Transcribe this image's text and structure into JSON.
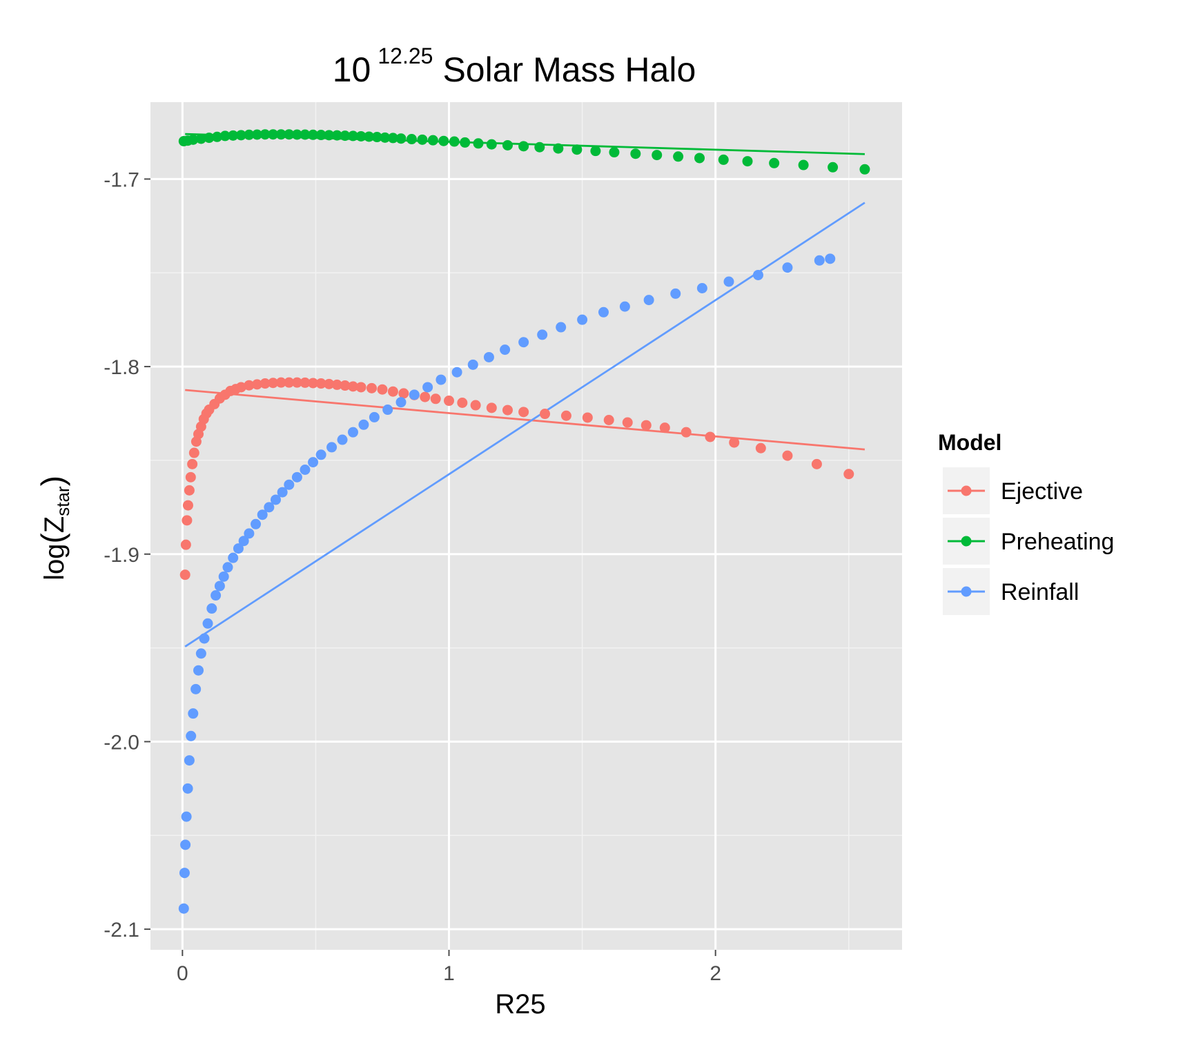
{
  "chart_data": {
    "type": "scatter",
    "title": {
      "base": "10",
      "exponent": "12.25",
      "rest": "Solar Mass Halo"
    },
    "xlabel": "R25",
    "ylabel": {
      "prefix": "log",
      "main": "Z",
      "subscript": "star"
    },
    "xlim": [
      -0.12,
      2.7
    ],
    "ylim": [
      -2.111,
      -1.659
    ],
    "x_ticks": [
      {
        "value": 0,
        "label": "0"
      },
      {
        "value": 1,
        "label": "1"
      },
      {
        "value": 2,
        "label": "2"
      }
    ],
    "y_ticks": [
      {
        "value": -2.1,
        "label": "-2.1"
      },
      {
        "value": -2.0,
        "label": "-2.0"
      },
      {
        "value": -1.9,
        "label": "-1.9"
      },
      {
        "value": -1.8,
        "label": "-1.8"
      },
      {
        "value": -1.7,
        "label": "-1.7"
      }
    ],
    "grid": true,
    "legend": {
      "title": "Model",
      "position": "right"
    },
    "series": [
      {
        "name": "Ejective",
        "color": "#F8766D",
        "points": [
          [
            0.01,
            -1.911
          ],
          [
            0.013,
            -1.895
          ],
          [
            0.017,
            -1.882
          ],
          [
            0.021,
            -1.874
          ],
          [
            0.026,
            -1.866
          ],
          [
            0.031,
            -1.859
          ],
          [
            0.037,
            -1.852
          ],
          [
            0.044,
            -1.846
          ],
          [
            0.052,
            -1.84
          ],
          [
            0.06,
            -1.836
          ],
          [
            0.07,
            -1.832
          ],
          [
            0.08,
            -1.828
          ],
          [
            0.09,
            -1.825
          ],
          [
            0.1,
            -1.823
          ],
          [
            0.12,
            -1.82
          ],
          [
            0.14,
            -1.817
          ],
          [
            0.16,
            -1.815
          ],
          [
            0.18,
            -1.813
          ],
          [
            0.2,
            -1.812
          ],
          [
            0.22,
            -1.811
          ],
          [
            0.25,
            -1.81
          ],
          [
            0.28,
            -1.8095
          ],
          [
            0.31,
            -1.809
          ],
          [
            0.34,
            -1.8087
          ],
          [
            0.37,
            -1.8085
          ],
          [
            0.4,
            -1.8085
          ],
          [
            0.43,
            -1.8085
          ],
          [
            0.46,
            -1.8086
          ],
          [
            0.49,
            -1.8088
          ],
          [
            0.52,
            -1.809
          ],
          [
            0.55,
            -1.8093
          ],
          [
            0.58,
            -1.8097
          ],
          [
            0.61,
            -1.8101
          ],
          [
            0.64,
            -1.8106
          ],
          [
            0.67,
            -1.811
          ],
          [
            0.71,
            -1.8115
          ],
          [
            0.75,
            -1.8122
          ],
          [
            0.79,
            -1.8133
          ],
          [
            0.83,
            -1.8143
          ],
          [
            0.87,
            -1.8152
          ],
          [
            0.91,
            -1.8162
          ],
          [
            0.95,
            -1.8172
          ],
          [
            1.0,
            -1.8182
          ],
          [
            1.05,
            -1.8193
          ],
          [
            1.1,
            -1.8206
          ],
          [
            1.16,
            -1.822
          ],
          [
            1.22,
            -1.8232
          ],
          [
            1.28,
            -1.8242
          ],
          [
            1.36,
            -1.8252
          ],
          [
            1.44,
            -1.8262
          ],
          [
            1.52,
            -1.8272
          ],
          [
            1.6,
            -1.8285
          ],
          [
            1.67,
            -1.8298
          ],
          [
            1.74,
            -1.8313
          ],
          [
            1.81,
            -1.8326
          ],
          [
            1.89,
            -1.835
          ],
          [
            1.98,
            -1.8375
          ],
          [
            2.07,
            -1.8405
          ],
          [
            2.17,
            -1.8435
          ],
          [
            2.27,
            -1.8475
          ],
          [
            2.38,
            -1.852
          ],
          [
            2.5,
            -1.8573
          ]
        ],
        "fit": [
          [
            0.01,
            -1.8125
          ],
          [
            2.56,
            -1.8442
          ]
        ]
      },
      {
        "name": "Preheating",
        "color": "#00BA38",
        "points": [
          [
            0.005,
            -1.6798
          ],
          [
            0.02,
            -1.6795
          ],
          [
            0.04,
            -1.679
          ],
          [
            0.07,
            -1.6785
          ],
          [
            0.1,
            -1.678
          ],
          [
            0.13,
            -1.6775
          ],
          [
            0.16,
            -1.677
          ],
          [
            0.19,
            -1.6768
          ],
          [
            0.22,
            -1.6766
          ],
          [
            0.25,
            -1.6764
          ],
          [
            0.28,
            -1.6763
          ],
          [
            0.31,
            -1.6762
          ],
          [
            0.34,
            -1.6762
          ],
          [
            0.37,
            -1.6762
          ],
          [
            0.4,
            -1.6762
          ],
          [
            0.43,
            -1.6763
          ],
          [
            0.46,
            -1.6763
          ],
          [
            0.49,
            -1.6764
          ],
          [
            0.52,
            -1.6765
          ],
          [
            0.55,
            -1.6766
          ],
          [
            0.58,
            -1.6767
          ],
          [
            0.61,
            -1.6769
          ],
          [
            0.64,
            -1.677
          ],
          [
            0.67,
            -1.6772
          ],
          [
            0.7,
            -1.6774
          ],
          [
            0.73,
            -1.6776
          ],
          [
            0.76,
            -1.6779
          ],
          [
            0.79,
            -1.6781
          ],
          [
            0.82,
            -1.6784
          ],
          [
            0.86,
            -1.6787
          ],
          [
            0.9,
            -1.679
          ],
          [
            0.94,
            -1.6793
          ],
          [
            0.98,
            -1.6797
          ],
          [
            1.02,
            -1.68
          ],
          [
            1.06,
            -1.6805
          ],
          [
            1.11,
            -1.681
          ],
          [
            1.16,
            -1.6815
          ],
          [
            1.22,
            -1.682
          ],
          [
            1.28,
            -1.6825
          ],
          [
            1.34,
            -1.683
          ],
          [
            1.41,
            -1.6837
          ],
          [
            1.48,
            -1.6843
          ],
          [
            1.55,
            -1.685
          ],
          [
            1.62,
            -1.6857
          ],
          [
            1.7,
            -1.6865
          ],
          [
            1.78,
            -1.6872
          ],
          [
            1.86,
            -1.688
          ],
          [
            1.94,
            -1.6888
          ],
          [
            2.03,
            -1.6897
          ],
          [
            2.12,
            -1.6905
          ],
          [
            2.22,
            -1.6915
          ],
          [
            2.33,
            -1.6925
          ],
          [
            2.44,
            -1.6937
          ],
          [
            2.56,
            -1.6948
          ]
        ],
        "fit": [
          [
            0.01,
            -1.676
          ],
          [
            2.56,
            -1.6867
          ]
        ]
      },
      {
        "name": "Reinfall",
        "color": "#619CFF",
        "points": [
          [
            0.005,
            -2.089
          ],
          [
            0.008,
            -2.07
          ],
          [
            0.011,
            -2.055
          ],
          [
            0.015,
            -2.04
          ],
          [
            0.02,
            -2.025
          ],
          [
            0.026,
            -2.01
          ],
          [
            0.032,
            -1.997
          ],
          [
            0.04,
            -1.985
          ],
          [
            0.05,
            -1.972
          ],
          [
            0.06,
            -1.962
          ],
          [
            0.07,
            -1.953
          ],
          [
            0.082,
            -1.945
          ],
          [
            0.095,
            -1.937
          ],
          [
            0.11,
            -1.929
          ],
          [
            0.125,
            -1.922
          ],
          [
            0.14,
            -1.917
          ],
          [
            0.155,
            -1.912
          ],
          [
            0.17,
            -1.907
          ],
          [
            0.19,
            -1.902
          ],
          [
            0.21,
            -1.897
          ],
          [
            0.23,
            -1.893
          ],
          [
            0.25,
            -1.889
          ],
          [
            0.275,
            -1.884
          ],
          [
            0.3,
            -1.879
          ],
          [
            0.325,
            -1.875
          ],
          [
            0.35,
            -1.871
          ],
          [
            0.375,
            -1.867
          ],
          [
            0.4,
            -1.863
          ],
          [
            0.43,
            -1.859
          ],
          [
            0.46,
            -1.855
          ],
          [
            0.49,
            -1.851
          ],
          [
            0.52,
            -1.847
          ],
          [
            0.56,
            -1.843
          ],
          [
            0.6,
            -1.839
          ],
          [
            0.64,
            -1.835
          ],
          [
            0.68,
            -1.831
          ],
          [
            0.72,
            -1.827
          ],
          [
            0.77,
            -1.823
          ],
          [
            0.82,
            -1.819
          ],
          [
            0.87,
            -1.815
          ],
          [
            0.92,
            -1.811
          ],
          [
            0.97,
            -1.807
          ],
          [
            1.03,
            -1.803
          ],
          [
            1.09,
            -1.799
          ],
          [
            1.15,
            -1.795
          ],
          [
            1.21,
            -1.791
          ],
          [
            1.28,
            -1.787
          ],
          [
            1.35,
            -1.783
          ],
          [
            1.42,
            -1.779
          ],
          [
            1.5,
            -1.775
          ],
          [
            1.58,
            -1.771
          ],
          [
            1.66,
            -1.768
          ],
          [
            1.75,
            -1.7645
          ],
          [
            1.85,
            -1.7611
          ],
          [
            1.95,
            -1.7582
          ],
          [
            2.05,
            -1.7547
          ],
          [
            2.16,
            -1.7512
          ],
          [
            2.27,
            -1.7472
          ],
          [
            2.39,
            -1.7434
          ],
          [
            2.43,
            -1.7425
          ]
        ],
        "fit": [
          [
            0.01,
            -1.9493
          ],
          [
            2.56,
            -1.7126
          ]
        ]
      }
    ]
  }
}
